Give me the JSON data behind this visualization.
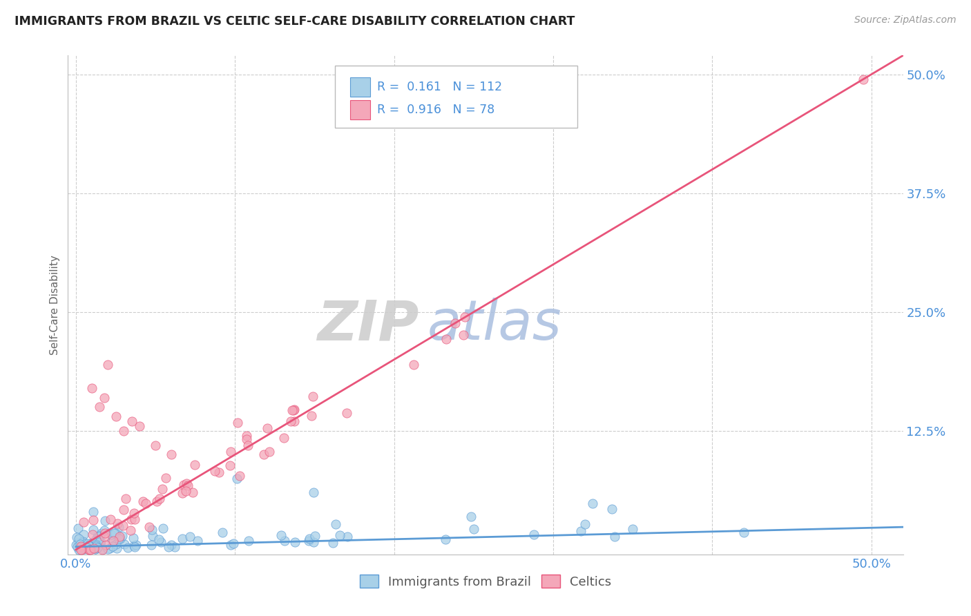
{
  "title": "IMMIGRANTS FROM BRAZIL VS CELTIC SELF-CARE DISABILITY CORRELATION CHART",
  "source_text": "Source: ZipAtlas.com",
  "ylabel": "Self-Care Disability",
  "ytick_labels": [
    "12.5%",
    "25.0%",
    "37.5%",
    "50.0%"
  ],
  "ytick_values": [
    12.5,
    25.0,
    37.5,
    50.0
  ],
  "xtick_values": [
    0.0,
    10.0,
    20.0,
    30.0,
    40.0,
    50.0
  ],
  "legend_R1": "0.161",
  "legend_N1": "112",
  "legend_R2": "0.916",
  "legend_N2": "78",
  "series1_name": "Immigrants from Brazil",
  "series2_name": "Celtics",
  "series1_color": "#A8D0E8",
  "series2_color": "#F4A7B9",
  "line1_color": "#5B9BD5",
  "line2_color": "#E8547A",
  "background_color": "#FFFFFF",
  "grid_color": "#CCCCCC",
  "title_color": "#222222",
  "axis_label_color": "#4A90D9",
  "watermark_zip_color": "#CCCCCC",
  "watermark_atlas_color": "#AABFE0",
  "xlim": [
    -0.5,
    52.0
  ],
  "ylim": [
    -0.5,
    52.0
  ]
}
